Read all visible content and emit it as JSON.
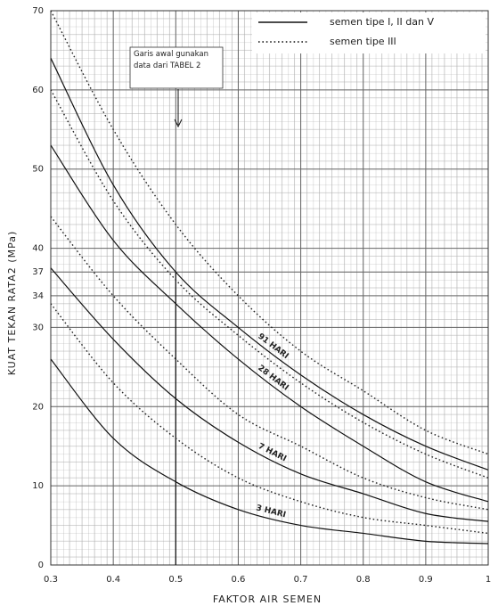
{
  "chart_data": {
    "type": "line",
    "x_label": "FAKTOR AIR SEMEN",
    "y_label": "KUAT TEKAN RATA2 (MPa)",
    "annotation": "Garis awal gunakan data dari TABEL 2",
    "legend": [
      {
        "label": "semen tipe I, II dan V",
        "dash": "solid"
      },
      {
        "label": "semen tipe III",
        "dash": "dotted"
      }
    ],
    "x": [
      0.3,
      0.4,
      0.5,
      0.6,
      0.7,
      0.8,
      0.9,
      1
    ],
    "series": [
      {
        "name": "91 HARI",
        "dash": "solid",
        "color": "#111",
        "values": [
          64,
          48,
          37,
          30,
          24,
          19,
          15,
          12
        ]
      },
      {
        "name": "28 HARI",
        "dash": "solid",
        "color": "#111",
        "values": [
          53,
          41,
          33,
          26,
          20,
          15,
          10.5,
          8
        ]
      },
      {
        "name": "7 HARI",
        "dash": "solid",
        "color": "#111",
        "values": [
          37.5,
          28.5,
          21,
          15.5,
          11.5,
          9,
          6.5,
          5.5
        ]
      },
      {
        "name": "3 HARI",
        "dash": "solid",
        "color": "#111",
        "values": [
          26,
          16,
          10.5,
          7,
          5,
          4,
          3,
          2.7
        ]
      },
      {
        "dash": "dotted",
        "color": "#222",
        "values": [
          70,
          55,
          43,
          34,
          27,
          22,
          17,
          14
        ]
      },
      {
        "dash": "dotted",
        "color": "#222",
        "values": [
          60,
          46,
          36,
          29,
          23,
          18,
          14,
          11
        ]
      },
      {
        "dash": "dotted",
        "color": "#222",
        "values": [
          44,
          34,
          26,
          19,
          15,
          11,
          8.5,
          7
        ]
      },
      {
        "dash": "dotted",
        "color": "#222",
        "values": [
          33,
          23,
          16,
          11,
          8,
          6,
          5,
          4
        ]
      }
    ],
    "xlim": [
      0.3,
      1
    ],
    "xticks": [
      0.3,
      0.4,
      0.5,
      0.6,
      0.7,
      0.8,
      0.9,
      1
    ],
    "ylim": [
      0,
      70
    ],
    "yticks": [
      0,
      10,
      20,
      30,
      34,
      37,
      40,
      50,
      60,
      70
    ],
    "grid": true
  }
}
